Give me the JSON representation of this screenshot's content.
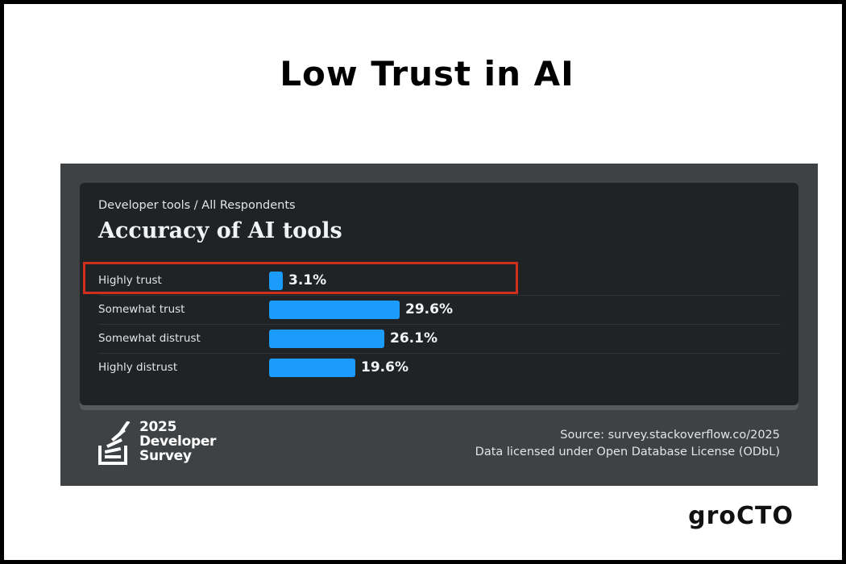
{
  "page": {
    "headline": "Low Trust in AI",
    "brand": "groCTO"
  },
  "card": {
    "breadcrumb": "Developer tools / All Respondents",
    "logo": {
      "year": "2025",
      "line1": "Developer",
      "line2": "Survey"
    },
    "source": "Source: survey.stackoverflow.co/2025",
    "license": "Data licensed under Open Database License (ODbL)"
  },
  "chart_data": {
    "type": "bar",
    "orientation": "horizontal",
    "title": "Accuracy of AI tools",
    "categories": [
      "Highly trust",
      "Somewhat trust",
      "Somewhat distrust",
      "Highly distrust"
    ],
    "values": [
      3.1,
      29.6,
      26.1,
      19.6
    ],
    "value_labels": [
      "3.1%",
      "29.6%",
      "26.1%",
      "19.6%"
    ],
    "bar_color": "#1b9cfc",
    "highlighted_category": "Highly trust",
    "highlight_color": "#d32f1e"
  }
}
